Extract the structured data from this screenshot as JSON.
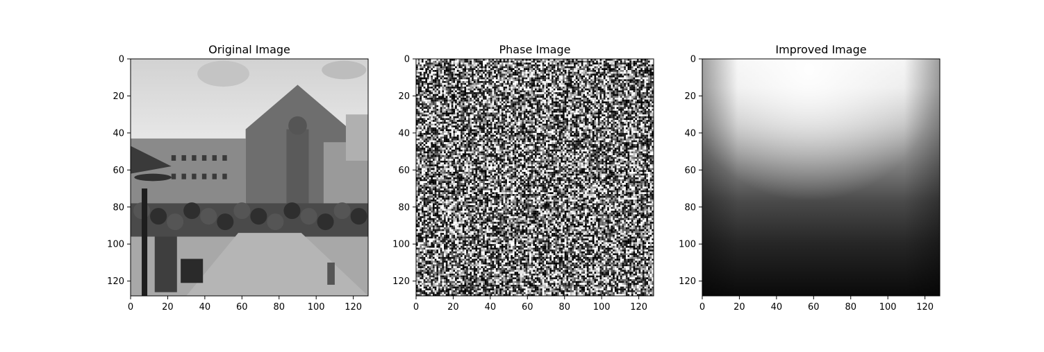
{
  "chart_data": [
    {
      "type": "heatmap",
      "title": "Original Image",
      "xlabel": "",
      "ylabel": "",
      "xlim": [
        0,
        128
      ],
      "ylim": [
        128,
        0
      ],
      "xticks": [
        0,
        20,
        40,
        60,
        80,
        100,
        120
      ],
      "yticks": [
        0,
        20,
        40,
        60,
        80,
        100,
        120
      ],
      "grid": false,
      "colormap": "gray",
      "content": "photo"
    },
    {
      "type": "heatmap",
      "title": "Phase Image",
      "xlabel": "",
      "ylabel": "",
      "xlim": [
        0,
        128
      ],
      "ylim": [
        128,
        0
      ],
      "xticks": [
        0,
        20,
        40,
        60,
        80,
        100,
        120
      ],
      "yticks": [
        0,
        20,
        40,
        60,
        80,
        100,
        120
      ],
      "grid": false,
      "colormap": "gray",
      "content": "noise"
    },
    {
      "type": "heatmap",
      "title": "Improved Image",
      "xlabel": "",
      "ylabel": "",
      "xlim": [
        0,
        128
      ],
      "ylim": [
        128,
        0
      ],
      "xticks": [
        0,
        20,
        40,
        60,
        80,
        100,
        120
      ],
      "yticks": [
        0,
        20,
        40,
        60,
        80,
        100,
        120
      ],
      "grid": false,
      "colormap": "gray",
      "content": "gradient"
    }
  ]
}
